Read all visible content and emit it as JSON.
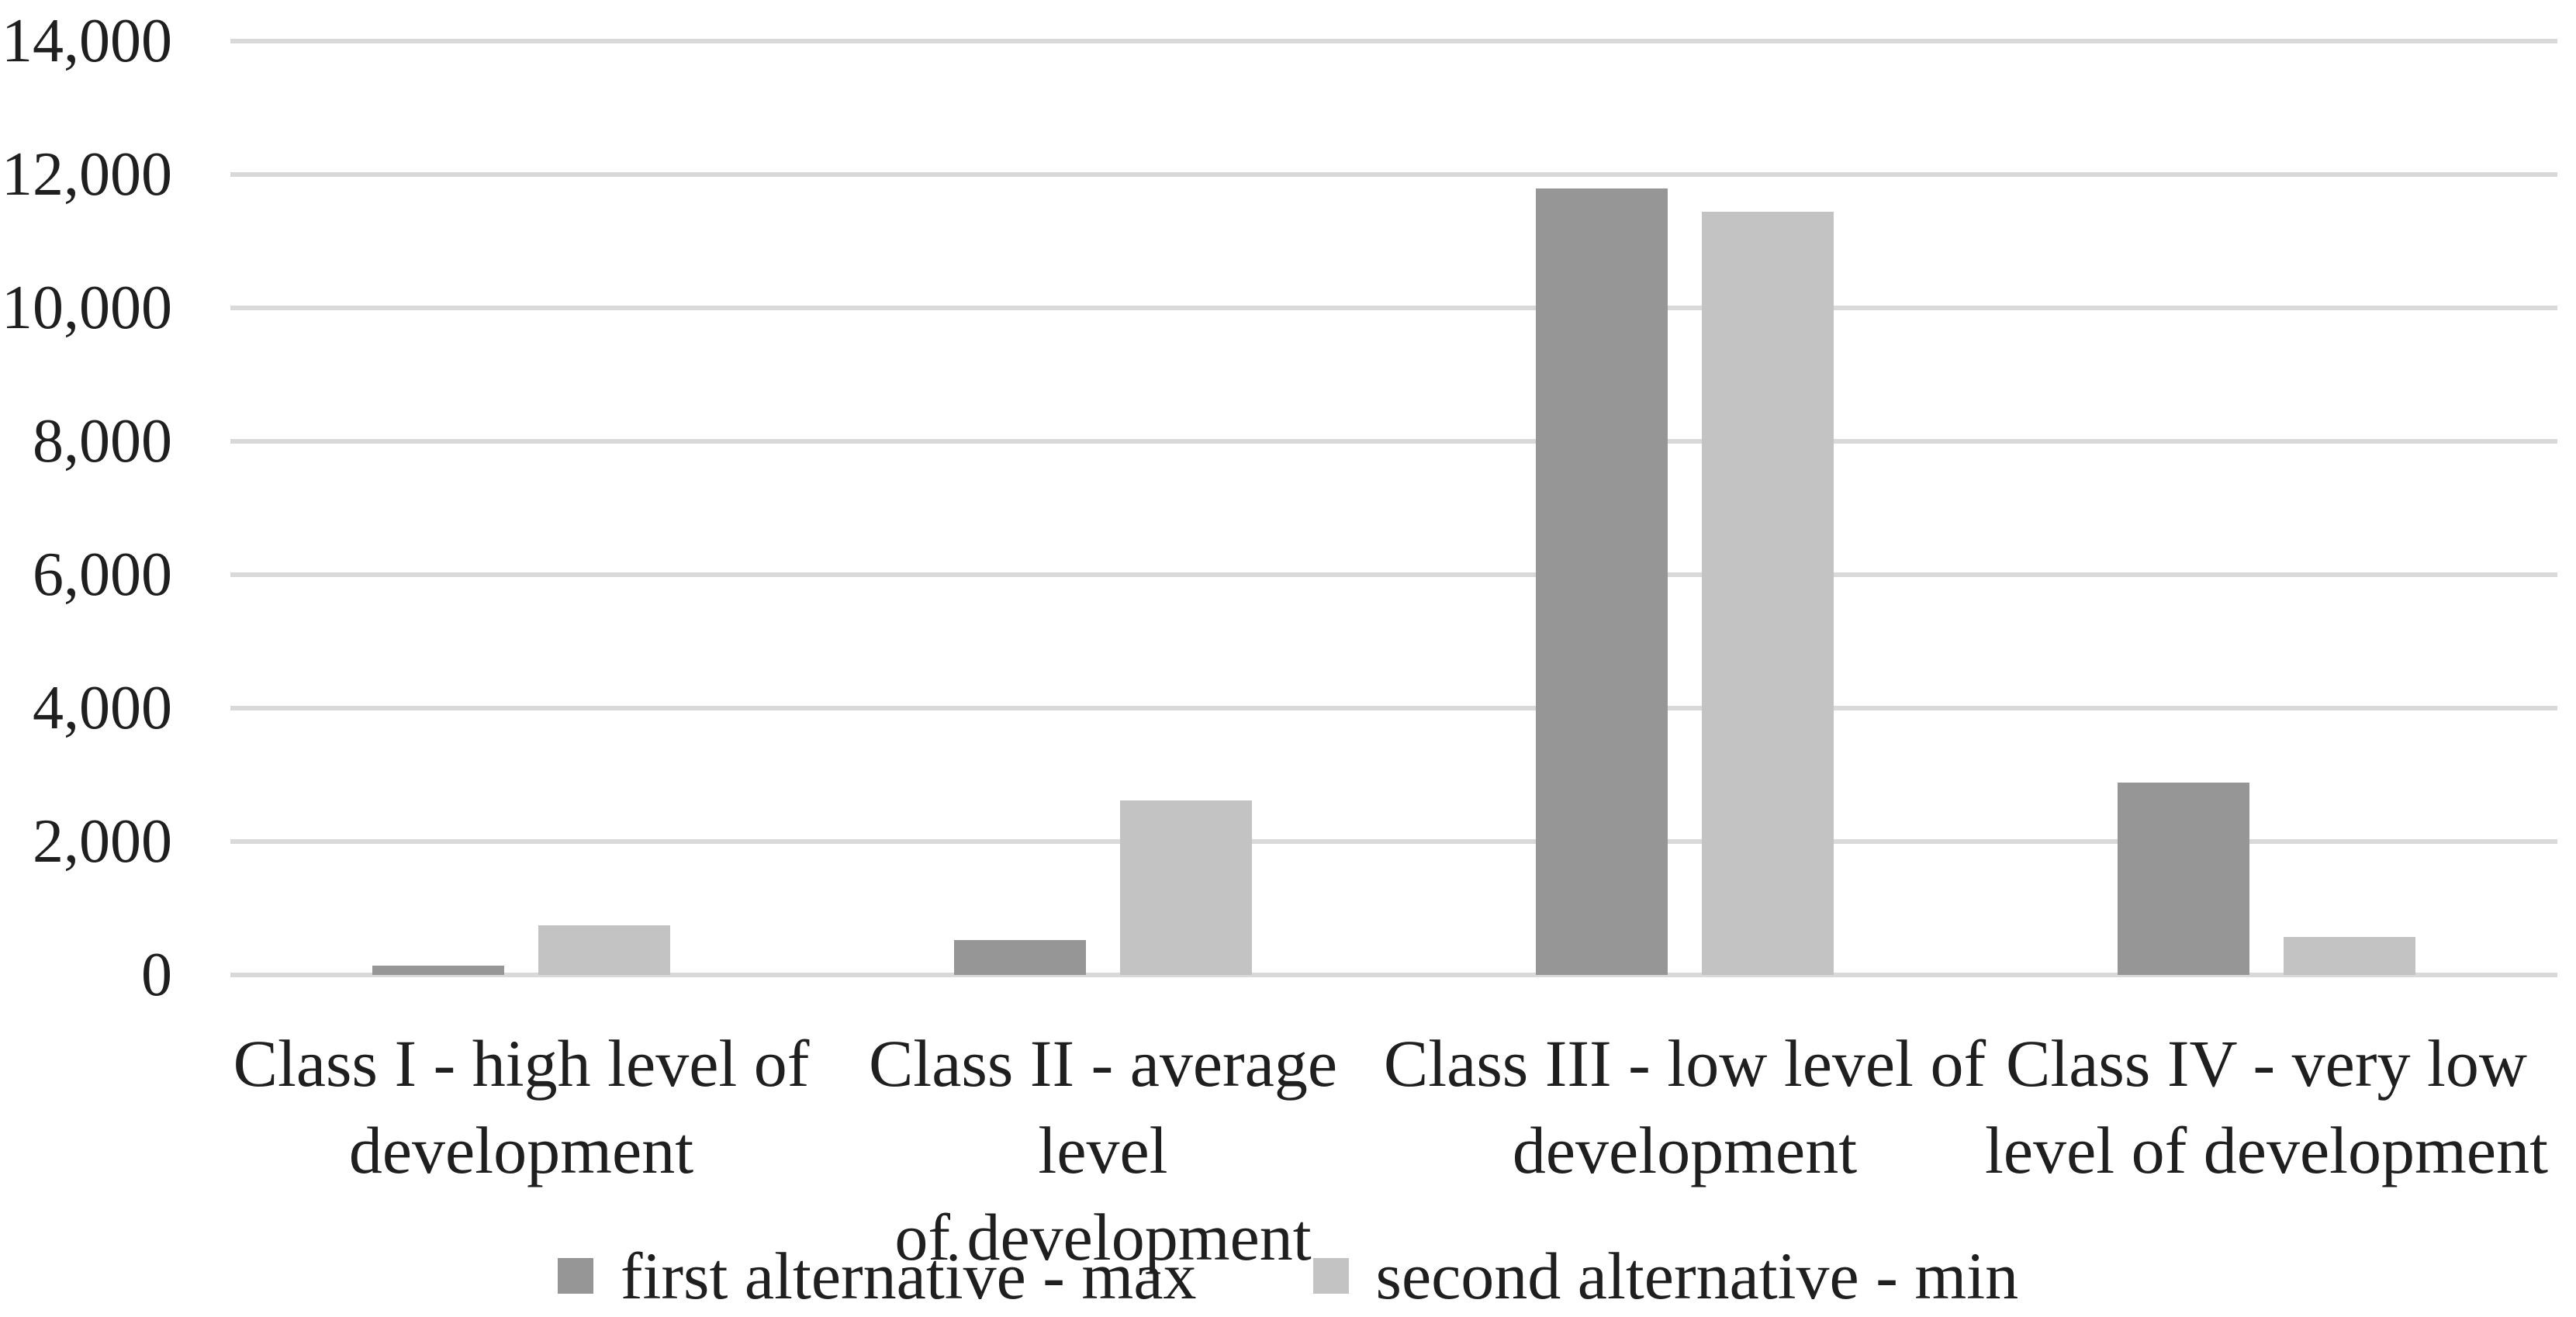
{
  "chart_data": {
    "type": "bar",
    "title": "",
    "xlabel": "",
    "ylabel": "",
    "categories": [
      "Class I - high level of development",
      "Class II - average level of development",
      "Class III - low level of development",
      "Class IV - very low level of development"
    ],
    "category_lines": [
      [
        "Class I - high level of",
        "development"
      ],
      [
        "Class II - average level",
        "of development"
      ],
      [
        "Class III - low level of",
        "development"
      ],
      [
        "Class IV - very low",
        "level of development"
      ]
    ],
    "series": [
      {
        "name": "first alternative - max",
        "color": "#969696",
        "values": [
          140,
          520,
          11790,
          2880
        ]
      },
      {
        "name": "second alternative - min",
        "color": "#c3c3c3",
        "values": [
          740,
          2615,
          11440,
          570
        ]
      }
    ],
    "ylim": [
      0,
      14000
    ],
    "ytick_step": 2000,
    "ytick_labels": [
      "0",
      "2,000",
      "4,000",
      "6,000",
      "8,000",
      "10,000",
      "12,000",
      "14,000"
    ],
    "grid": true,
    "legend_position": "bottom",
    "gridline_color": "#d9d9d9",
    "text_color": "#1f1f1f",
    "background": "#ffffff"
  }
}
